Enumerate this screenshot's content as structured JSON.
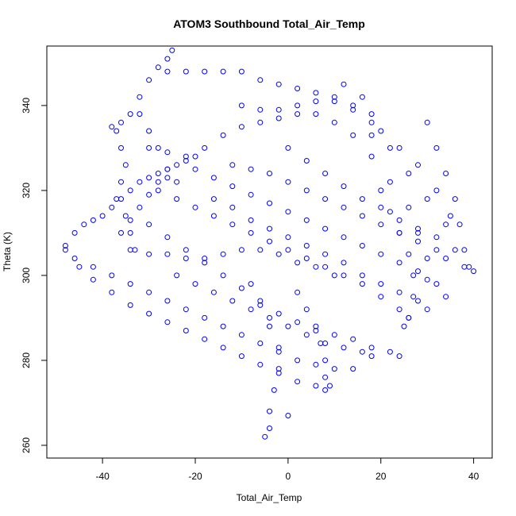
{
  "chart_data": {
    "type": "scatter",
    "title": "ATOM3 Southbound Total_Air_Temp",
    "xlabel": "Total_Air_Temp",
    "ylabel": "Theta (K)",
    "xlim": [
      -52,
      44
    ],
    "ylim": [
      257,
      354
    ],
    "xticks": [
      "-40",
      "-20",
      "0",
      "20",
      "40"
    ],
    "yticks": [
      "260",
      "280",
      "300",
      "320",
      "340"
    ],
    "grid": false,
    "legend": "none",
    "marker": "open-circle",
    "color": "#0000ff",
    "series": [
      {
        "points": [
          [
            -48,
            307
          ],
          [
            -46,
            310
          ],
          [
            -44,
            312
          ],
          [
            -42,
            313
          ],
          [
            -40,
            314
          ],
          [
            -38,
            316
          ],
          [
            -36,
            318
          ],
          [
            -34,
            320
          ],
          [
            -32,
            322
          ],
          [
            -30,
            323
          ],
          [
            -28,
            324
          ],
          [
            -26,
            325
          ],
          [
            -24,
            326
          ],
          [
            -22,
            327
          ],
          [
            -20,
            328
          ],
          [
            -48,
            306
          ],
          [
            -45,
            302
          ],
          [
            -42,
            299
          ],
          [
            -38,
            296
          ],
          [
            -34,
            293
          ],
          [
            -30,
            291
          ],
          [
            -26,
            289
          ],
          [
            -22,
            287
          ],
          [
            -18,
            285
          ],
          [
            -14,
            283
          ],
          [
            -10,
            281
          ],
          [
            -6,
            279
          ],
          [
            -2,
            277
          ],
          [
            2,
            275
          ],
          [
            6,
            274
          ],
          [
            8,
            273
          ],
          [
            -46,
            304
          ],
          [
            -42,
            302
          ],
          [
            -38,
            300
          ],
          [
            -34,
            298
          ],
          [
            -30,
            296
          ],
          [
            -26,
            294
          ],
          [
            -22,
            292
          ],
          [
            -18,
            290
          ],
          [
            -14,
            288
          ],
          [
            -10,
            286
          ],
          [
            -6,
            284
          ],
          [
            -2,
            282
          ],
          [
            2,
            280
          ],
          [
            6,
            279
          ],
          [
            10,
            278
          ],
          [
            14,
            278
          ],
          [
            -38,
            335
          ],
          [
            -36,
            336
          ],
          [
            -34,
            338
          ],
          [
            -32,
            342
          ],
          [
            -30,
            346
          ],
          [
            -28,
            349
          ],
          [
            -26,
            351
          ],
          [
            -25,
            353
          ],
          [
            -37,
            334
          ],
          [
            -36,
            330
          ],
          [
            -35,
            326
          ],
          [
            -36,
            322
          ],
          [
            -37,
            318
          ],
          [
            -35,
            314
          ],
          [
            -34,
            310
          ],
          [
            -33,
            306
          ],
          [
            -26,
            348
          ],
          [
            -22,
            348
          ],
          [
            -18,
            348
          ],
          [
            -14,
            348
          ],
          [
            -10,
            348
          ],
          [
            -6,
            346
          ],
          [
            -2,
            345
          ],
          [
            2,
            344
          ],
          [
            6,
            343
          ],
          [
            10,
            342
          ],
          [
            14,
            340
          ],
          [
            18,
            336
          ],
          [
            22,
            330
          ],
          [
            26,
            324
          ],
          [
            30,
            318
          ],
          [
            34,
            312
          ],
          [
            36,
            306
          ],
          [
            38,
            302
          ],
          [
            40,
            301
          ],
          [
            -30,
            330
          ],
          [
            -26,
            329
          ],
          [
            -22,
            328
          ],
          [
            -18,
            330
          ],
          [
            -14,
            333
          ],
          [
            -10,
            335
          ],
          [
            -6,
            336
          ],
          [
            -2,
            337
          ],
          [
            2,
            338
          ],
          [
            6,
            338
          ],
          [
            10,
            336
          ],
          [
            14,
            333
          ],
          [
            18,
            328
          ],
          [
            22,
            322
          ],
          [
            26,
            316
          ],
          [
            28,
            310
          ],
          [
            30,
            304
          ],
          [
            32,
            298
          ],
          [
            34,
            295
          ],
          [
            -28,
            320
          ],
          [
            -24,
            318
          ],
          [
            -20,
            316
          ],
          [
            -16,
            314
          ],
          [
            -12,
            312
          ],
          [
            -8,
            310
          ],
          [
            -4,
            308
          ],
          [
            0,
            306
          ],
          [
            4,
            304
          ],
          [
            8,
            302
          ],
          [
            12,
            300
          ],
          [
            16,
            298
          ],
          [
            20,
            295
          ],
          [
            24,
            292
          ],
          [
            26,
            290
          ],
          [
            -30,
            312
          ],
          [
            -26,
            309
          ],
          [
            -22,
            306
          ],
          [
            -18,
            303
          ],
          [
            -14,
            300
          ],
          [
            -10,
            297
          ],
          [
            -6,
            294
          ],
          [
            -2,
            291
          ],
          [
            2,
            289
          ],
          [
            6,
            287
          ],
          [
            10,
            286
          ],
          [
            14,
            285
          ],
          [
            18,
            283
          ],
          [
            22,
            282
          ],
          [
            24,
            281
          ],
          [
            -20,
            325
          ],
          [
            -16,
            323
          ],
          [
            -12,
            321
          ],
          [
            -8,
            319
          ],
          [
            -4,
            317
          ],
          [
            0,
            315
          ],
          [
            4,
            313
          ],
          [
            8,
            311
          ],
          [
            12,
            309
          ],
          [
            16,
            307
          ],
          [
            20,
            305
          ],
          [
            24,
            303
          ],
          [
            28,
            301
          ],
          [
            30,
            299
          ],
          [
            -24,
            300
          ],
          [
            -20,
            298
          ],
          [
            -16,
            296
          ],
          [
            -12,
            294
          ],
          [
            -8,
            292
          ],
          [
            -4,
            290
          ],
          [
            0,
            288
          ],
          [
            4,
            286
          ],
          [
            8,
            284
          ],
          [
            12,
            283
          ],
          [
            16,
            282
          ],
          [
            18,
            281
          ],
          [
            -12,
            326
          ],
          [
            -8,
            325
          ],
          [
            -4,
            324
          ],
          [
            0,
            322
          ],
          [
            4,
            320
          ],
          [
            8,
            318
          ],
          [
            12,
            316
          ],
          [
            16,
            314
          ],
          [
            20,
            312
          ],
          [
            24,
            310
          ],
          [
            28,
            308
          ],
          [
            32,
            306
          ],
          [
            34,
            304
          ],
          [
            -16,
            318
          ],
          [
            -12,
            316
          ],
          [
            -8,
            313
          ],
          [
            -4,
            311
          ],
          [
            0,
            309
          ],
          [
            4,
            307
          ],
          [
            8,
            305
          ],
          [
            12,
            303
          ],
          [
            16,
            300
          ],
          [
            20,
            298
          ],
          [
            24,
            296
          ],
          [
            28,
            294
          ],
          [
            30,
            292
          ],
          [
            -8,
            298
          ],
          [
            -6,
            293
          ],
          [
            -4,
            288
          ],
          [
            -2,
            283
          ],
          [
            -2,
            278
          ],
          [
            -3,
            273
          ],
          [
            -4,
            268
          ],
          [
            -4,
            264
          ],
          [
            -5,
            262
          ],
          [
            0,
            267
          ],
          [
            2,
            296
          ],
          [
            4,
            292
          ],
          [
            6,
            288
          ],
          [
            7,
            284
          ],
          [
            8,
            280
          ],
          [
            8,
            276
          ],
          [
            9,
            274
          ],
          [
            -32,
            338
          ],
          [
            -30,
            334
          ],
          [
            -28,
            330
          ],
          [
            -26,
            325
          ],
          [
            -24,
            322
          ],
          [
            20,
            320
          ],
          [
            22,
            315
          ],
          [
            24,
            310
          ],
          [
            26,
            305
          ],
          [
            27,
            300
          ],
          [
            27,
            295
          ],
          [
            26,
            290
          ],
          [
            25,
            288
          ],
          [
            0,
            330
          ],
          [
            4,
            327
          ],
          [
            8,
            324
          ],
          [
            12,
            321
          ],
          [
            16,
            318
          ],
          [
            20,
            316
          ],
          [
            24,
            313
          ],
          [
            28,
            311
          ],
          [
            32,
            309
          ],
          [
            -34,
            306
          ],
          [
            -30,
            305
          ],
          [
            -26,
            305
          ],
          [
            -22,
            304
          ],
          [
            -18,
            304
          ],
          [
            -14,
            305
          ],
          [
            -10,
            306
          ],
          [
            -6,
            306
          ],
          [
            -2,
            305
          ],
          [
            2,
            303
          ],
          [
            6,
            302
          ],
          [
            10,
            300
          ],
          [
            -36,
            310
          ],
          [
            -34,
            313
          ],
          [
            -32,
            316
          ],
          [
            -30,
            319
          ],
          [
            -28,
            322
          ],
          [
            -26,
            323
          ],
          [
            30,
            336
          ],
          [
            32,
            330
          ],
          [
            34,
            324
          ],
          [
            36,
            318
          ],
          [
            37,
            312
          ],
          [
            38,
            306
          ],
          [
            39,
            302
          ],
          [
            12,
            345
          ],
          [
            16,
            342
          ],
          [
            18,
            338
          ],
          [
            20,
            334
          ],
          [
            24,
            330
          ],
          [
            28,
            326
          ],
          [
            32,
            320
          ],
          [
            35,
            314
          ],
          [
            -10,
            340
          ],
          [
            -6,
            339
          ],
          [
            -2,
            339
          ],
          [
            2,
            340
          ],
          [
            6,
            341
          ],
          [
            10,
            341
          ],
          [
            14,
            339
          ],
          [
            18,
            333
          ]
        ]
      }
    ]
  }
}
